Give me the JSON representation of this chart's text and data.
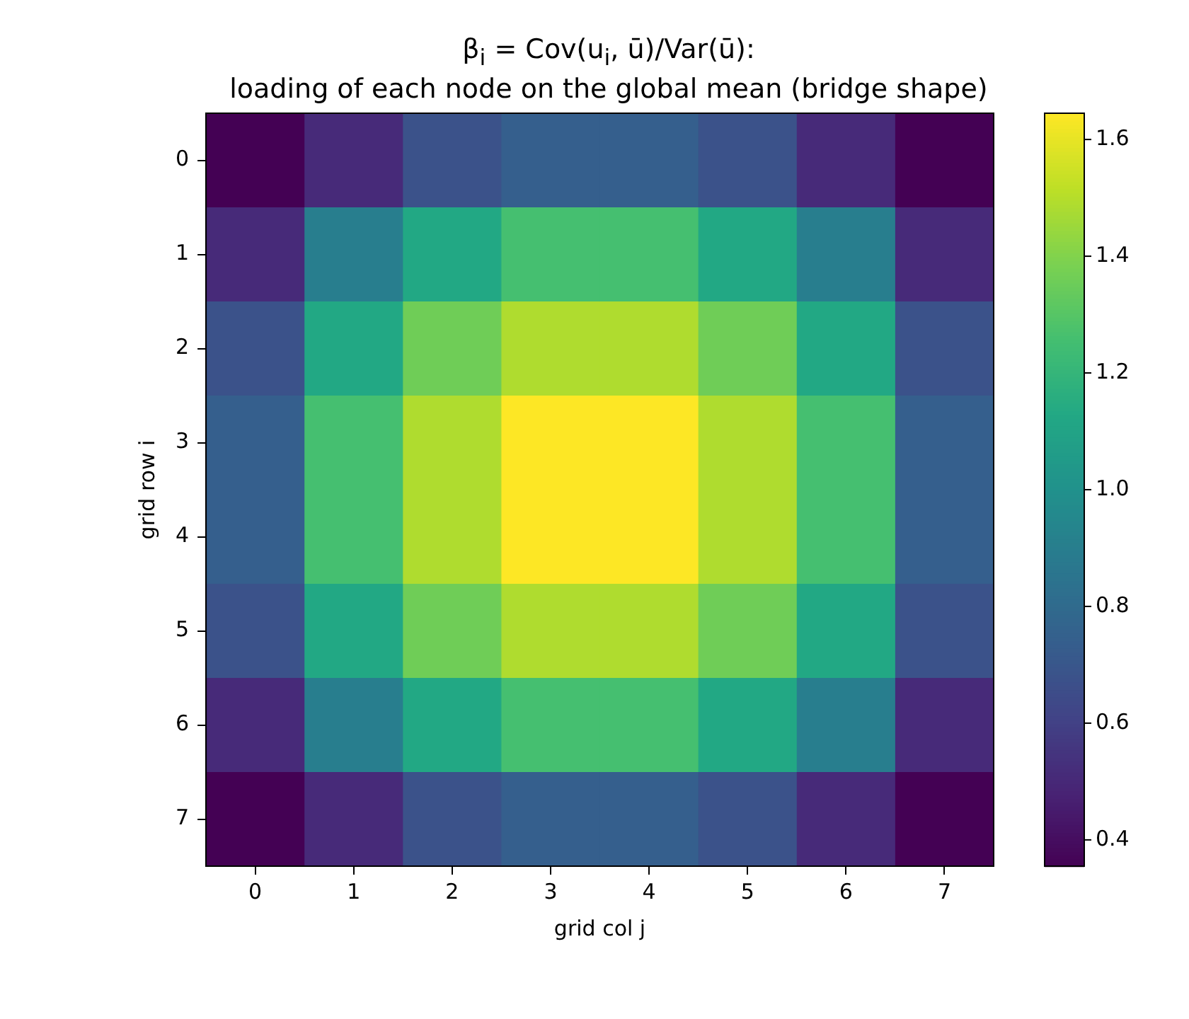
{
  "chart_data": {
    "type": "heatmap",
    "title": "β$_{i}$ = Cov(u$_{i}$, ū)/Var(ū):\nloading of each node on the global mean (bridge shape)",
    "xlabel": "grid col j",
    "ylabel": "grid row i",
    "categories": [
      "0",
      "1",
      "2",
      "3",
      "4",
      "5",
      "6",
      "7"
    ],
    "y_categories": [
      "0",
      "1",
      "2",
      "3",
      "4",
      "5",
      "6",
      "7"
    ],
    "cells": [
      [
        0.355,
        0.51,
        0.68,
        0.74,
        0.74,
        0.68,
        0.51,
        0.355
      ],
      [
        0.51,
        0.9,
        1.13,
        1.26,
        1.26,
        1.13,
        0.9,
        0.51
      ],
      [
        0.68,
        1.13,
        1.36,
        1.49,
        1.49,
        1.36,
        1.13,
        0.68
      ],
      [
        0.74,
        1.26,
        1.49,
        1.645,
        1.645,
        1.49,
        1.26,
        0.74
      ],
      [
        0.74,
        1.26,
        1.49,
        1.645,
        1.645,
        1.49,
        1.26,
        0.74
      ],
      [
        0.68,
        1.13,
        1.36,
        1.49,
        1.49,
        1.36,
        1.13,
        0.68
      ],
      [
        0.51,
        0.9,
        1.13,
        1.26,
        1.26,
        1.13,
        0.9,
        0.51
      ],
      [
        0.355,
        0.51,
        0.68,
        0.74,
        0.74,
        0.68,
        0.51,
        0.355
      ]
    ],
    "clim": [
      0.355,
      1.645
    ],
    "cticks": [
      0.4,
      0.6,
      0.8,
      {
        "value": 1,
        "label": "1.0"
      },
      1.2,
      1.4,
      1.6
    ]
  }
}
